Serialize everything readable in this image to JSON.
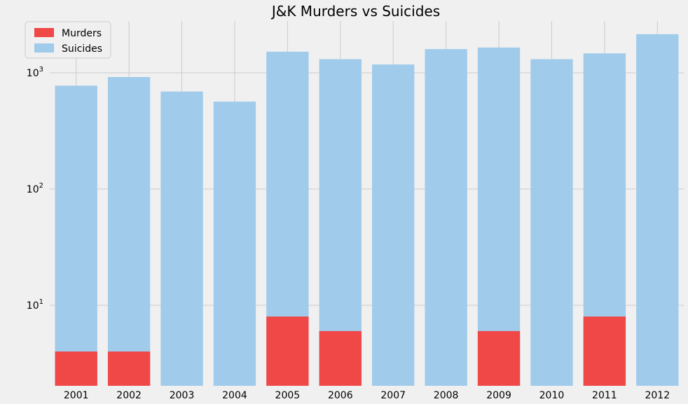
{
  "chart_data": {
    "type": "bar",
    "title": "J&K Murders vs Suicides",
    "xlabel": "",
    "ylabel": "",
    "yscale": "log",
    "ylim": [
      2,
      3000
    ],
    "yticks": [
      10,
      100,
      1000
    ],
    "ytick_labels": [
      {
        "base": "10",
        "exp": "1"
      },
      {
        "base": "10",
        "exp": "2"
      },
      {
        "base": "10",
        "exp": "3"
      }
    ],
    "grid": true,
    "legend_position": "top-left",
    "categories": [
      "2001",
      "2002",
      "2003",
      "2004",
      "2005",
      "2006",
      "2007",
      "2008",
      "2009",
      "2010",
      "2011",
      "2012"
    ],
    "series": [
      {
        "name": "Suicides",
        "color": "#a0cbea",
        "values": [
          775,
          920,
          690,
          565,
          1520,
          1310,
          1180,
          1600,
          1650,
          1310,
          1470,
          2150
        ]
      },
      {
        "name": "Murders",
        "color": "#f04747",
        "values": [
          4,
          4,
          0,
          0,
          8,
          6,
          0,
          0,
          6,
          0,
          8,
          0
        ]
      }
    ],
    "legend": [
      "Murders",
      "Suicides"
    ]
  }
}
